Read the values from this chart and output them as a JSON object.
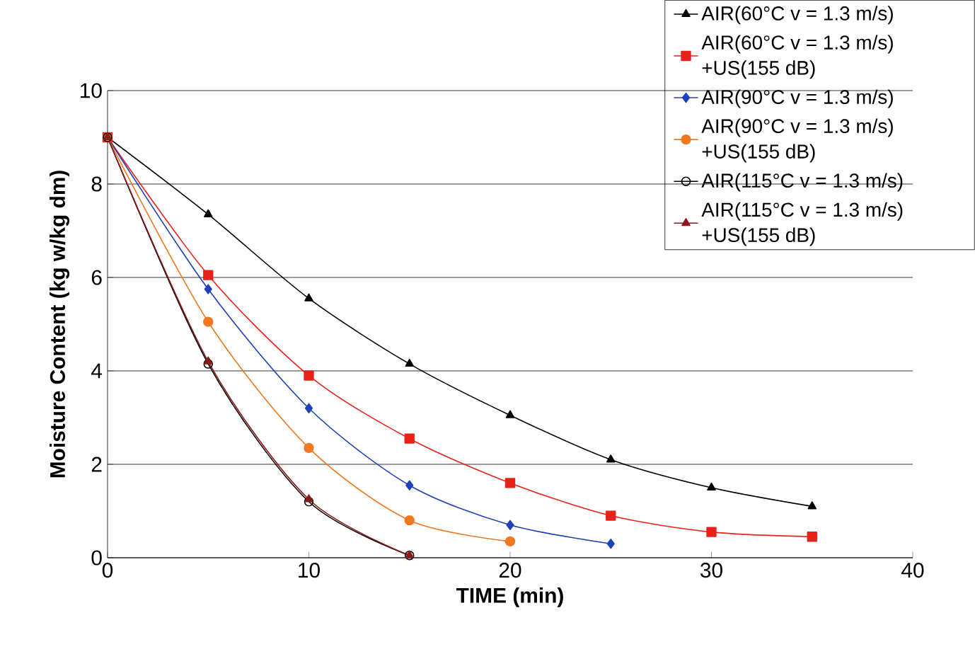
{
  "chart_data": {
    "type": "line",
    "xlabel": "TIME (min)",
    "ylabel": "Moisture Content (kg w/kg dm)",
    "x": [
      0,
      5,
      10,
      15,
      20,
      25,
      30,
      35
    ],
    "xlim": [
      0,
      40
    ],
    "xticks": [
      0,
      10,
      20,
      30,
      40
    ],
    "ylim": [
      0,
      10
    ],
    "yticks": [
      0,
      2,
      4,
      6,
      8,
      10
    ],
    "grid": "y",
    "legend": "top right",
    "series": [
      {
        "name": "AIR(60°C v = 1.3 m/s)",
        "color": "#000000",
        "marker": "triangle",
        "values": [
          9,
          7.35,
          5.55,
          4.15,
          3.05,
          2.1,
          1.5,
          1.1
        ]
      },
      {
        "name": "AIR(60°C v = 1.3 m/s) +US(155 dB)",
        "color": "#e8221b",
        "marker": "square",
        "values": [
          9,
          6.05,
          3.9,
          2.55,
          1.6,
          0.9,
          0.55,
          0.45
        ]
      },
      {
        "name": "AIR(90°C v = 1.3 m/s)",
        "color": "#2040b8",
        "marker": "diamond",
        "values": [
          9,
          5.75,
          3.2,
          1.55,
          0.7,
          0.3,
          null,
          null
        ]
      },
      {
        "name": "AIR(90°C v = 1.3 m/s) +US(155 dB)",
        "color": "#f07820",
        "marker": "circle",
        "values": [
          9,
          5.05,
          2.35,
          0.8,
          0.35,
          null,
          null,
          null
        ]
      },
      {
        "name": "AIR(115°C v = 1.3 m/s)",
        "color": "#000000",
        "marker": "open circle",
        "values": [
          9,
          4.15,
          1.2,
          0.05,
          null,
          null,
          null,
          null
        ]
      },
      {
        "name": "AIR(115°C v = 1.3 m/s) +US(155 dB)",
        "color": "#8b1a1a",
        "marker": "triangle",
        "values": [
          9,
          4.2,
          1.25,
          0.05,
          null,
          null,
          null,
          null
        ]
      }
    ]
  }
}
